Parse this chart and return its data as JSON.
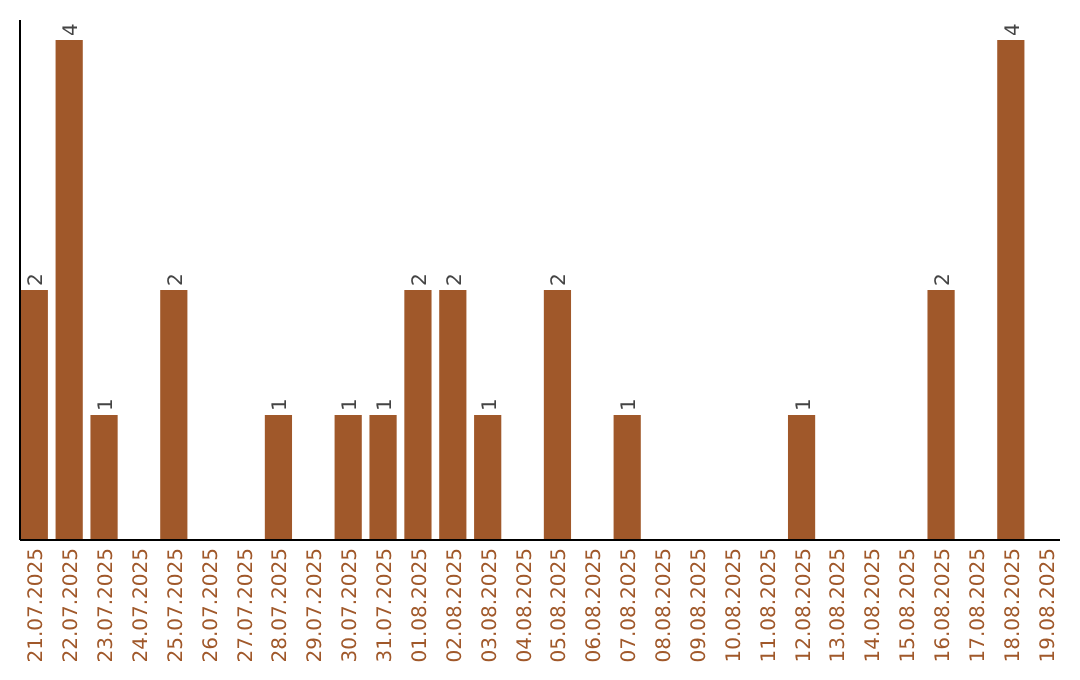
{
  "chart_data": {
    "type": "bar",
    "categories": [
      "21.07.2025",
      "22.07.2025",
      "23.07.2025",
      "24.07.2025",
      "25.07.2025",
      "26.07.2025",
      "27.07.2025",
      "28.07.2025",
      "29.07.2025",
      "30.07.2025",
      "31.07.2025",
      "01.08.2025",
      "02.08.2025",
      "03.08.2025",
      "04.08.2025",
      "05.08.2025",
      "06.08.2025",
      "07.08.2025",
      "08.08.2025",
      "09.08.2025",
      "10.08.2025",
      "11.08.2025",
      "12.08.2025",
      "13.08.2025",
      "14.08.2025",
      "15.08.2025",
      "16.08.2025",
      "17.08.2025",
      "18.08.2025",
      "19.08.2025"
    ],
    "values": [
      2,
      4,
      1,
      0,
      2,
      0,
      0,
      1,
      0,
      1,
      1,
      2,
      2,
      1,
      0,
      2,
      0,
      1,
      0,
      0,
      0,
      0,
      1,
      0,
      0,
      0,
      2,
      0,
      4,
      0
    ],
    "value_labels": [
      "2",
      "4",
      "1",
      null,
      "2",
      null,
      null,
      "1",
      null,
      "1",
      "1",
      "2",
      "2",
      "1",
      null,
      "2",
      null,
      "1",
      null,
      null,
      null,
      null,
      "1",
      null,
      null,
      null,
      "2",
      null,
      "4",
      null
    ],
    "color": "#a0582a"
  }
}
